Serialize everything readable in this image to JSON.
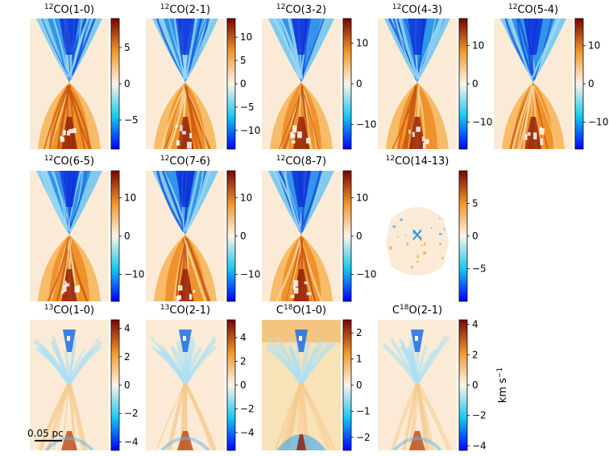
{
  "chart_data": {
    "type": "heatmap",
    "description_note": "Grid of velocity maps of molecular line emission",
    "colormap": {
      "negative": "#0000ff",
      "mid_negative": "#18c8f0",
      "zero": "#fdf4e8",
      "mid_positive": "#f0962a",
      "positive": "#7a0403"
    },
    "colorbar_unit_label": "km s",
    "colorbar_unit_exponent": "−1",
    "scalebar_label": "0.05 pc",
    "panels": [
      {
        "sup": "12",
        "title": "CO(1-0)",
        "vmin": -9,
        "vmax": 9,
        "ticks": [
          5,
          0,
          -5
        ],
        "tick_labels": [
          "5",
          "0",
          "−5"
        ],
        "shape": "full"
      },
      {
        "sup": "12",
        "title": "CO(2-1)",
        "vmin": -14,
        "vmax": 14,
        "ticks": [
          10,
          5,
          0,
          -5,
          -10
        ],
        "tick_labels": [
          "10",
          "5",
          "0",
          "−5",
          "−10"
        ],
        "shape": "full"
      },
      {
        "sup": "12",
        "title": "CO(3-2)",
        "vmin": -16,
        "vmax": 16,
        "ticks": [
          10,
          0,
          -10
        ],
        "tick_labels": [
          "10",
          "0",
          "−10"
        ],
        "shape": "full"
      },
      {
        "sup": "12",
        "title": "CO(4-3)",
        "vmin": -17,
        "vmax": 17,
        "ticks": [
          10,
          0,
          -10
        ],
        "tick_labels": [
          "10",
          "0",
          "−10"
        ],
        "shape": "full"
      },
      {
        "sup": "12",
        "title": "CO(5-4)",
        "vmin": -17,
        "vmax": 17,
        "ticks": [
          10,
          0,
          -10
        ],
        "tick_labels": [
          "10",
          "0",
          "−10"
        ],
        "shape": "full"
      },
      {
        "sup": "12",
        "title": "CO(6-5)",
        "vmin": -17,
        "vmax": 17,
        "ticks": [
          10,
          0,
          -10
        ],
        "tick_labels": [
          "10",
          "0",
          "−10"
        ],
        "shape": "full"
      },
      {
        "sup": "12",
        "title": "CO(7-6)",
        "vmin": -17,
        "vmax": 17,
        "ticks": [
          10,
          0,
          -10
        ],
        "tick_labels": [
          "10",
          "0",
          "−10"
        ],
        "shape": "full"
      },
      {
        "sup": "12",
        "title": "CO(8-7)",
        "vmin": -17,
        "vmax": 17,
        "ticks": [
          10,
          0,
          -10
        ],
        "tick_labels": [
          "10",
          "0",
          "−10"
        ],
        "shape": "full"
      },
      {
        "sup": "12",
        "title": "CO(14-13)",
        "vmin": -10,
        "vmax": 10,
        "ticks": [
          5,
          0,
          -5
        ],
        "tick_labels": [
          "5",
          "0",
          "−5"
        ],
        "shape": "compact"
      },
      {
        "sup": "13",
        "title": "CO(1-0)",
        "vmin": -4.6,
        "vmax": 4.6,
        "ticks": [
          4,
          2,
          0,
          -2,
          -4
        ],
        "tick_labels": [
          "4",
          "2",
          "0",
          "−2",
          "−4"
        ],
        "shape": "faint"
      },
      {
        "sup": "13",
        "title": "CO(2-1)",
        "vmin": -5.5,
        "vmax": 5.5,
        "ticks": [
          4,
          2,
          0,
          -2,
          -4
        ],
        "tick_labels": [
          "4",
          "2",
          "0",
          "−2",
          "−4"
        ],
        "shape": "faint"
      },
      {
        "pre": "C",
        "sup": "18",
        "title": "O(1-0)",
        "vmin": -2.5,
        "vmax": 2.5,
        "ticks": [
          2,
          1,
          0,
          -1,
          -2
        ],
        "tick_labels": [
          "2",
          "1",
          "0",
          "−1",
          "−2"
        ],
        "shape": "faint-warm"
      },
      {
        "pre": "C",
        "sup": "18",
        "title": "O(2-1)",
        "vmin": -4.3,
        "vmax": 4.3,
        "ticks": [
          4,
          2,
          0,
          -2,
          -4
        ],
        "tick_labels": [
          "4",
          "2",
          "0",
          "−2",
          "−4"
        ],
        "shape": "faint"
      }
    ]
  }
}
